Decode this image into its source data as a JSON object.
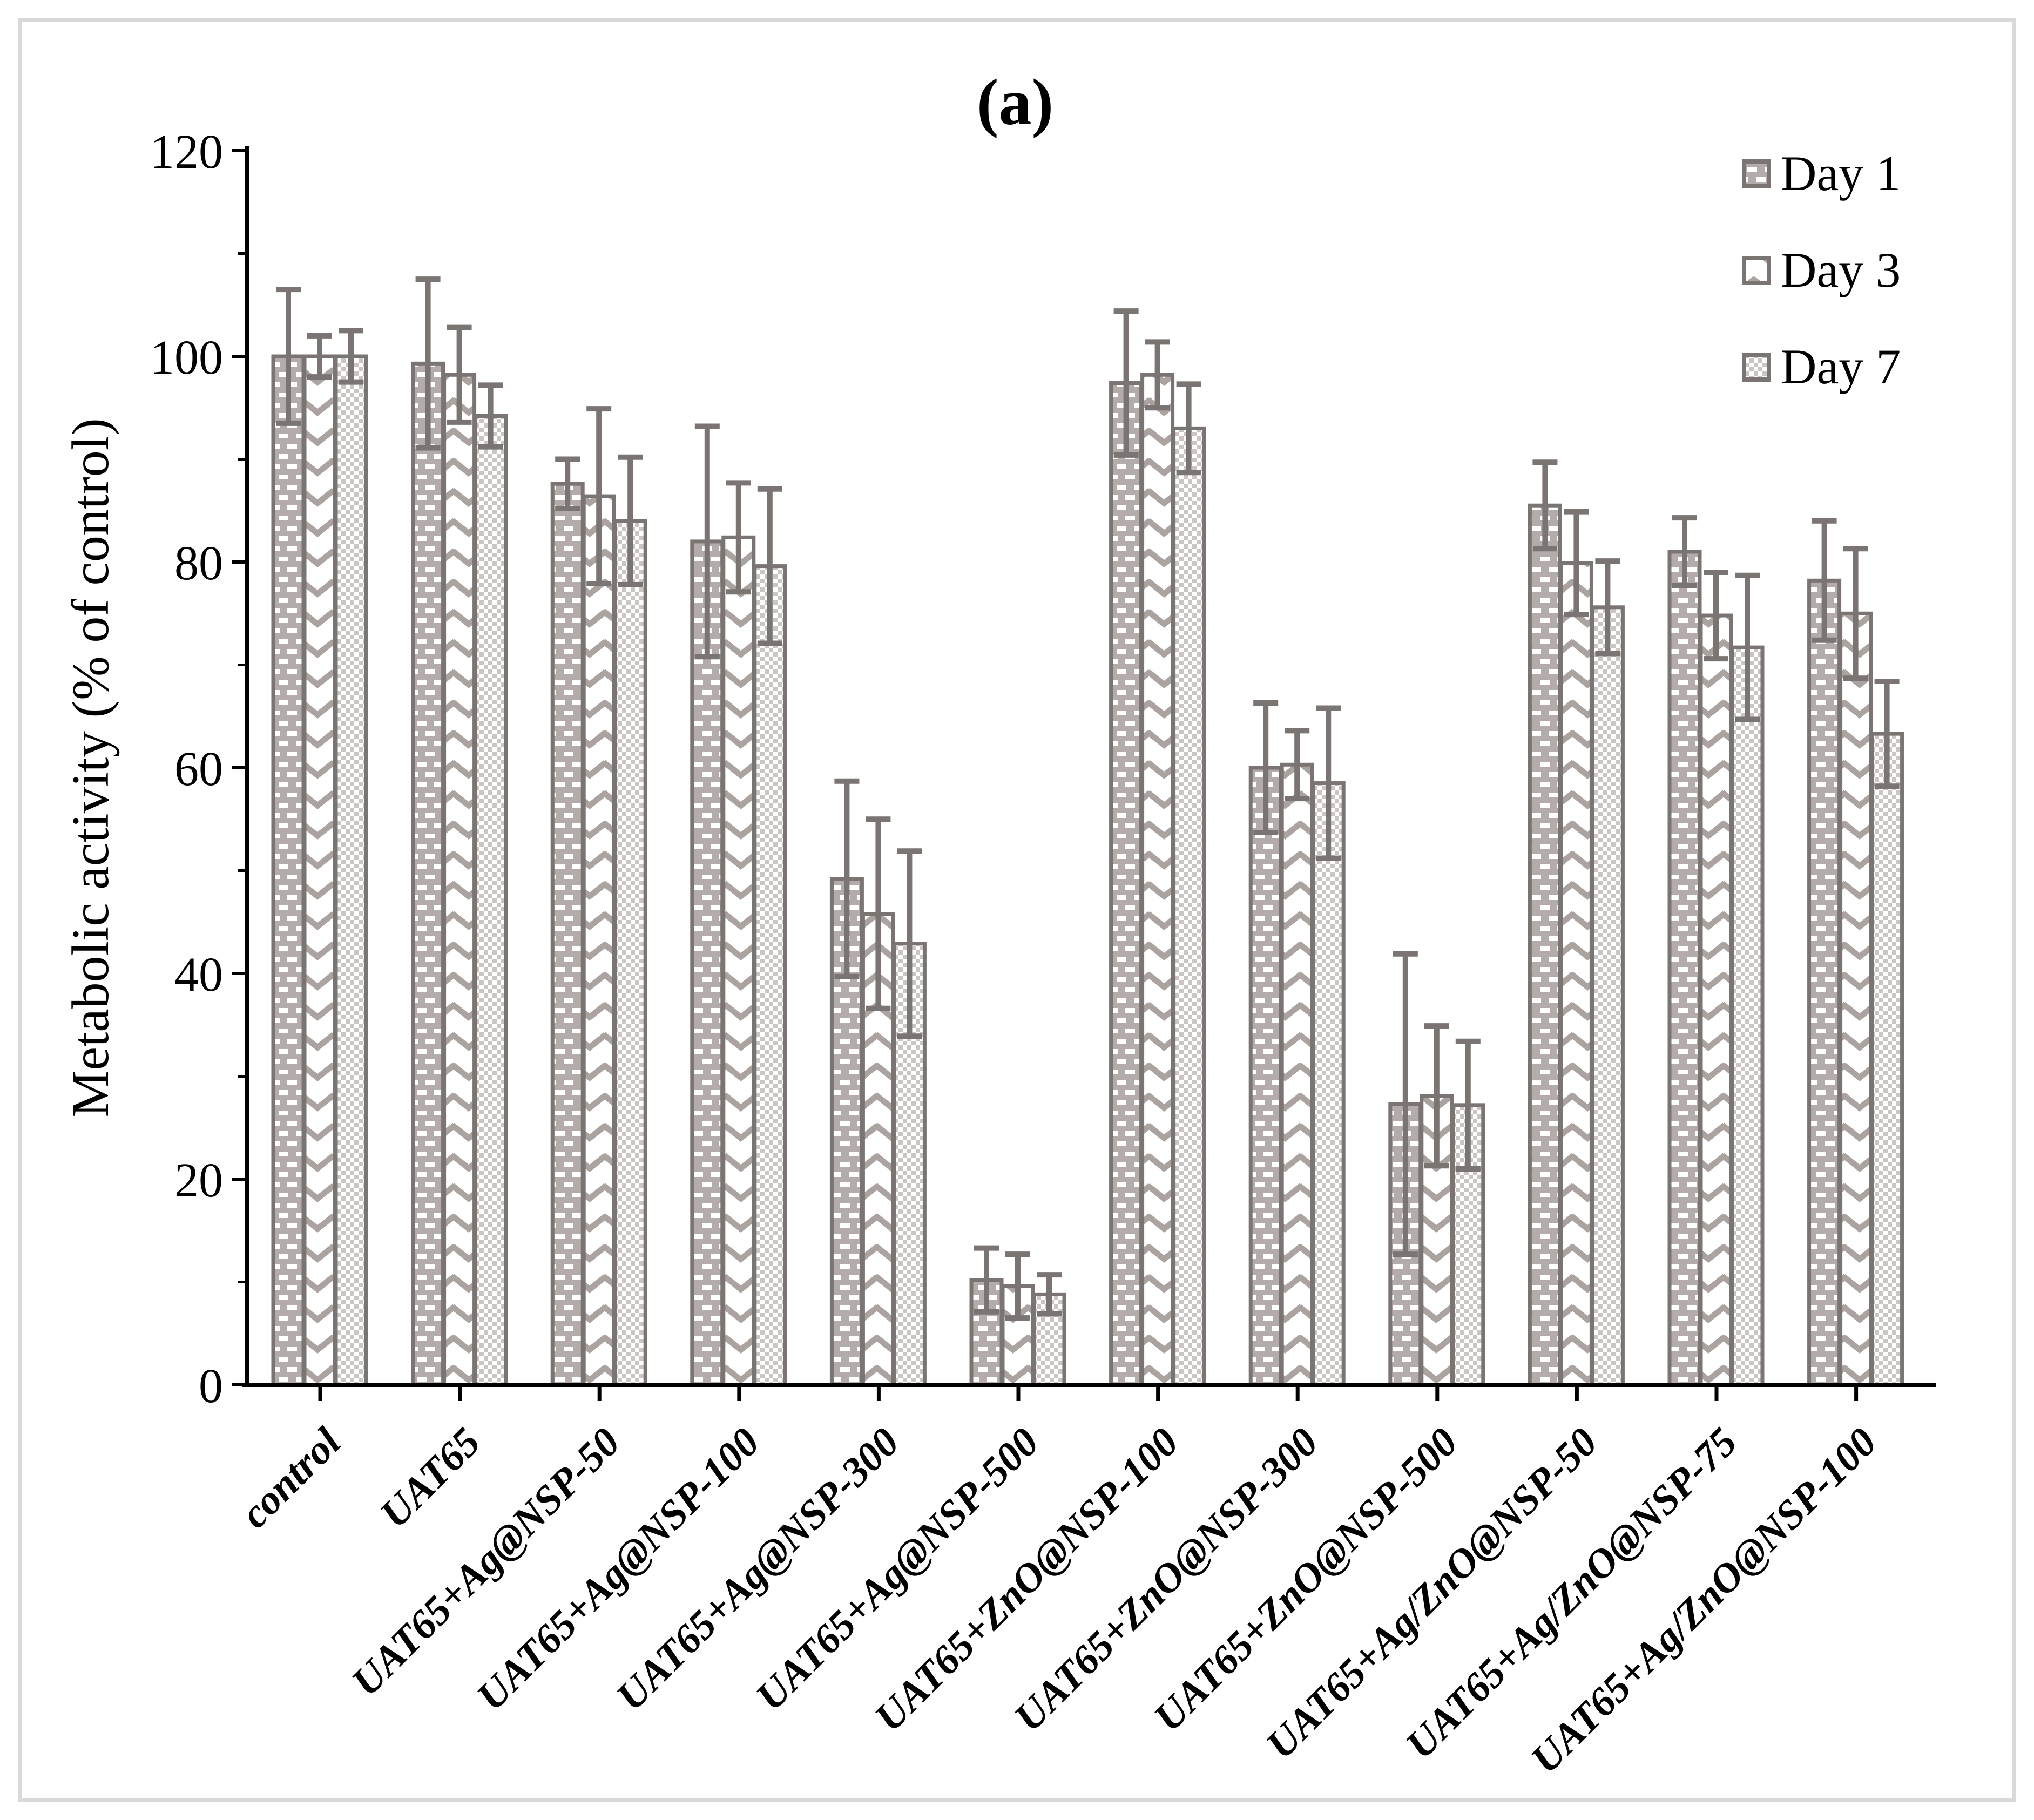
{
  "title": "(a)",
  "frame_color": "#d9d9d9",
  "chart_data": {
    "type": "bar",
    "title": "(a)",
    "xlabel": "",
    "ylabel": "Metabolic activity (% of control)",
    "ylim": [
      0,
      120
    ],
    "ytick_step": 20,
    "ytick_minor_step": 10,
    "grid": false,
    "legend_position": "top-right",
    "yticks": [
      0,
      20,
      40,
      60,
      80,
      100,
      120
    ],
    "categories": [
      "control",
      "UAT65",
      "UAT65+Ag@NSP-50",
      "UAT65+Ag@NSP-100",
      "UAT65+Ag@NSP-300",
      "UAT65+Ag@NSP-500",
      "UAT65+ZnO@NSP-100",
      "UAT65+ZnO@NSP-300",
      "UAT65+ZnO@NSP-500",
      "UAT65+Ag/ZnO@NSP-50",
      "UAT65+Ag/ZnO@NSP-75",
      "UAT65+Ag/ZnO@NSP-100"
    ],
    "series": [
      {
        "name": "Day 1",
        "pattern": "grey-brick-dashes",
        "values": [
          100,
          99.3,
          87.6,
          82,
          49.2,
          10.2,
          97.4,
          60,
          27.3,
          85.5,
          81,
          78.2
        ],
        "errors": [
          6.5,
          8.2,
          2.4,
          11.2,
          9.5,
          3.1,
          7,
          6.3,
          14.6,
          4.2,
          3.3,
          5.8
        ]
      },
      {
        "name": "Day 3",
        "pattern": "chevron-waves",
        "values": [
          100,
          98.2,
          86.4,
          82.4,
          45.8,
          9.6,
          98.2,
          60.3,
          28.1,
          79.9,
          74.8,
          75
        ],
        "errors": [
          2,
          4.6,
          8.5,
          5.3,
          9.2,
          3.1,
          3.2,
          3.3,
          6.8,
          5,
          4.2,
          6.3
        ]
      },
      {
        "name": "Day 7",
        "pattern": "checkerboard",
        "values": [
          100,
          94.2,
          84,
          79.6,
          42.9,
          8.8,
          93,
          58.5,
          27.2,
          75.6,
          71.7,
          63.3
        ],
        "errors": [
          2.5,
          3,
          6.2,
          7.5,
          9,
          1.9,
          4.3,
          7.3,
          6.2,
          4.5,
          7,
          5.1
        ]
      }
    ],
    "colors": {
      "axis": "#000000",
      "text": "#000000",
      "bar_border": "#7a7472",
      "error_bar": "#7a7472",
      "day1_base": "#b4acaa",
      "day1_dash": "#ffffff",
      "day3_chevron": "#aba39f",
      "day7_checker": "#cbc6c4",
      "frame": "#d9d9d9"
    }
  }
}
